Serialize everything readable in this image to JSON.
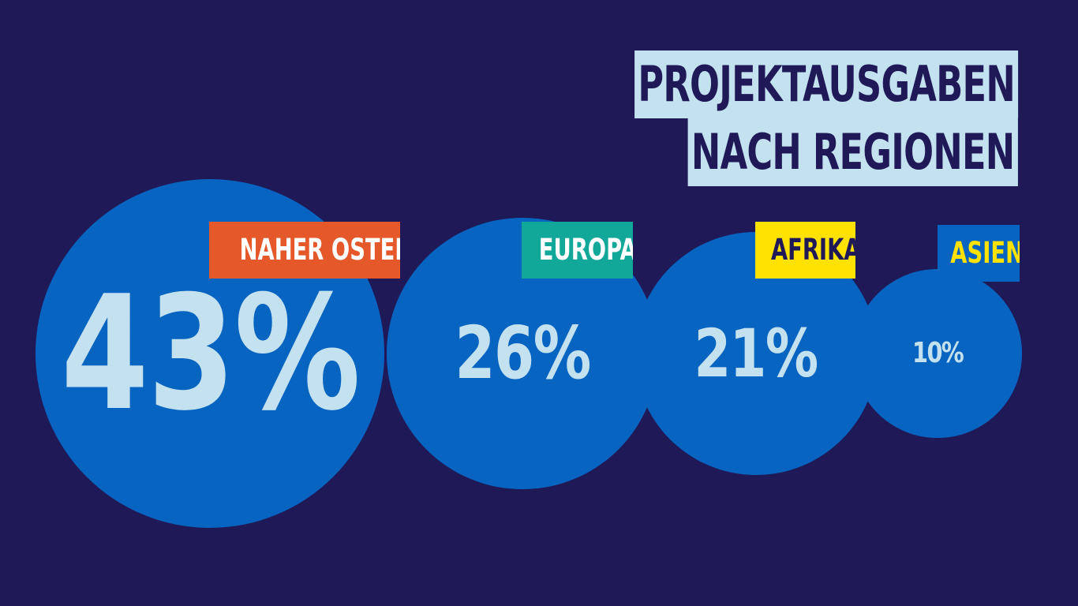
{
  "title": {
    "line1": "PROJEKTAUSGABEN",
    "line2": "NACH REGIONEN"
  },
  "colors": {
    "background": "#1f1a57",
    "bubble": "#0864c1",
    "title_bg": "#c4e1f0",
    "value_text": "#c4e1f0"
  },
  "chart_data": {
    "type": "bubble",
    "title": "PROJEKTAUSGABEN NACH REGIONEN",
    "unit": "%",
    "categories": [
      "NAHER OSTEN",
      "EUROPA",
      "AFRIKA",
      "ASIEN"
    ],
    "values": [
      43,
      26,
      21,
      10
    ],
    "value_labels": [
      "43%",
      "26%",
      "21%",
      "10%"
    ],
    "label_colors": [
      {
        "bg": "#e4582a",
        "fg": "#ffffff"
      },
      {
        "bg": "#11a89a",
        "fg": "#ffffff"
      },
      {
        "bg": "#ffe202",
        "fg": "#1f1a57"
      },
      {
        "bg": "#0864c1",
        "fg": "#ffe202"
      }
    ]
  }
}
